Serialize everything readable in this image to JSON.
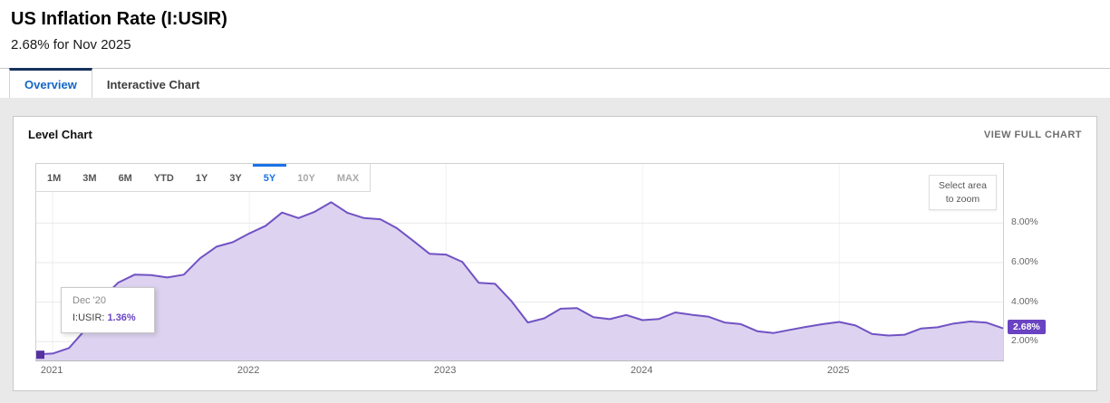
{
  "page": {
    "title": "US Inflation Rate (I:USIR)",
    "subtitle": "2.68% for Nov 2025"
  },
  "tabs": [
    {
      "label": "Overview",
      "active": true
    },
    {
      "label": "Interactive Chart",
      "active": false
    }
  ],
  "card": {
    "title": "Level Chart",
    "view_full_chart": "VIEW FULL CHART"
  },
  "toolbar": {
    "ranges": [
      {
        "label": "1M"
      },
      {
        "label": "3M"
      },
      {
        "label": "6M"
      },
      {
        "label": "YTD"
      },
      {
        "label": "1Y"
      },
      {
        "label": "3Y"
      },
      {
        "label": "5Y",
        "state": "active"
      },
      {
        "label": "10Y",
        "state": "muted"
      },
      {
        "label": "MAX",
        "state": "muted"
      }
    ]
  },
  "chart": {
    "zoom_hint": "Select area\nto zoom",
    "current_value": "2.68%"
  },
  "tooltip": {
    "date": "Dec '20",
    "series": "I:USIR:",
    "value": "1.36%"
  },
  "chart_data": {
    "type": "area",
    "title": "US Inflation Rate (I:USIR) Level Chart",
    "series_name": "I:USIR",
    "unit": "%",
    "x": [
      "Dec '20",
      "Jan '21",
      "Feb '21",
      "Mar '21",
      "Apr '21",
      "May '21",
      "Jun '21",
      "Jul '21",
      "Aug '21",
      "Sep '21",
      "Oct '21",
      "Nov '21",
      "Dec '21",
      "Jan '22",
      "Feb '22",
      "Mar '22",
      "Apr '22",
      "May '22",
      "Jun '22",
      "Jul '22",
      "Aug '22",
      "Sep '22",
      "Oct '22",
      "Nov '22",
      "Dec '22",
      "Jan '23",
      "Feb '23",
      "Mar '23",
      "Apr '23",
      "May '23",
      "Jun '23",
      "Jul '23",
      "Aug '23",
      "Sep '23",
      "Oct '23",
      "Nov '23",
      "Dec '23",
      "Jan '24",
      "Feb '24",
      "Mar '24",
      "Apr '24",
      "May '24",
      "Jun '24",
      "Jul '24",
      "Aug '24",
      "Sep '24",
      "Oct '24",
      "Nov '24",
      "Dec '24",
      "Jan '25",
      "Feb '25",
      "Mar '25",
      "Apr '25",
      "May '25",
      "Jun '25",
      "Jul '25",
      "Aug '25",
      "Sep '25",
      "Oct '25",
      "Nov '25"
    ],
    "values": [
      1.36,
      1.4,
      1.68,
      2.62,
      4.16,
      4.99,
      5.39,
      5.37,
      5.25,
      5.39,
      6.22,
      6.81,
      7.04,
      7.48,
      7.87,
      8.54,
      8.26,
      8.58,
      9.06,
      8.52,
      8.26,
      8.2,
      7.75,
      7.11,
      6.45,
      6.41,
      6.04,
      4.98,
      4.93,
      4.05,
      2.97,
      3.18,
      3.67,
      3.7,
      3.24,
      3.14,
      3.35,
      3.09,
      3.15,
      3.48,
      3.36,
      3.27,
      2.97,
      2.89,
      2.53,
      2.44,
      2.6,
      2.75,
      2.89,
      3.0,
      2.82,
      2.39,
      2.31,
      2.35,
      2.67,
      2.73,
      2.92,
      3.02,
      2.96,
      2.68
    ],
    "year_ticks": [
      {
        "label": "2021",
        "index": 1
      },
      {
        "label": "2022",
        "index": 13
      },
      {
        "label": "2023",
        "index": 25
      },
      {
        "label": "2024",
        "index": 37
      },
      {
        "label": "2025",
        "index": 49
      }
    ],
    "y_ticks": [
      {
        "value": 2,
        "label": "2.00%"
      },
      {
        "value": 4,
        "label": "4.00%"
      },
      {
        "value": 6,
        "label": "6.00%"
      },
      {
        "value": 8,
        "label": "8.00%"
      }
    ],
    "ylim": [
      1.05,
      11.0
    ],
    "grid": true,
    "legend": "none",
    "colors": {
      "line": "#7152c4",
      "fill": "#ddd3f0",
      "marker": "#54319e",
      "badge": "#6a43c2",
      "grid_h": "#e9e9e9",
      "grid_v": "#f0f0f0",
      "accent_blue": "#1a73e8",
      "tab_blue": "#1467c6",
      "tab_bar_dark": "#16325c"
    }
  }
}
